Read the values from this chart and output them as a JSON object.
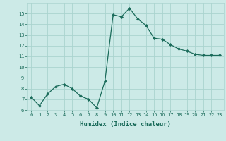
{
  "x": [
    0,
    1,
    2,
    3,
    4,
    5,
    6,
    7,
    8,
    9,
    10,
    11,
    12,
    13,
    14,
    15,
    16,
    17,
    18,
    19,
    20,
    21,
    22,
    23
  ],
  "y": [
    7.2,
    6.4,
    7.5,
    8.2,
    8.4,
    8.0,
    7.3,
    7.0,
    6.2,
    8.7,
    14.9,
    14.7,
    15.5,
    14.5,
    13.9,
    12.7,
    12.6,
    12.1,
    11.7,
    11.5,
    11.2,
    11.1,
    11.1,
    11.1
  ],
  "xlim": [
    -0.5,
    23.5
  ],
  "ylim": [
    6,
    16
  ],
  "yticks": [
    6,
    7,
    8,
    9,
    10,
    11,
    12,
    13,
    14,
    15
  ],
  "xticks": [
    0,
    1,
    2,
    3,
    4,
    5,
    6,
    7,
    8,
    9,
    10,
    11,
    12,
    13,
    14,
    15,
    16,
    17,
    18,
    19,
    20,
    21,
    22,
    23
  ],
  "xlabel": "Humidex (Indice chaleur)",
  "line_color": "#1a6b5a",
  "marker": "D",
  "marker_size": 2.0,
  "bg_color": "#cceae7",
  "grid_color": "#aad4cf",
  "tick_color": "#1a6b5a",
  "label_fontsize": 5.0,
  "xlabel_fontsize": 6.5
}
